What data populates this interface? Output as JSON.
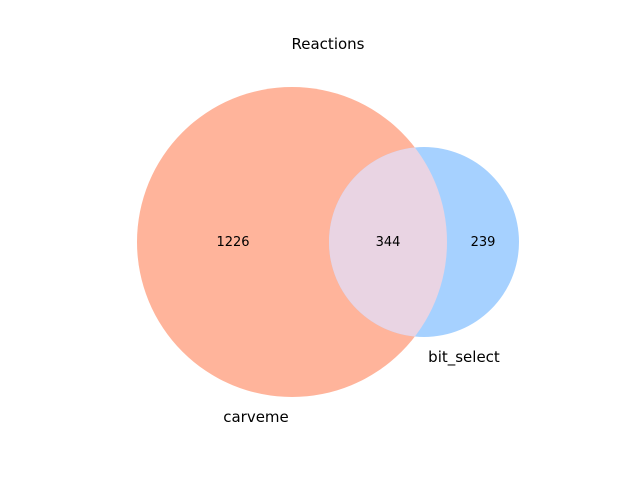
{
  "chart_data": {
    "type": "venn",
    "title": "Reactions",
    "sets": [
      {
        "name": "carveme",
        "color": "#ffb49b"
      },
      {
        "name": "bit_select",
        "color": "#a6d1ff"
      }
    ],
    "regions": {
      "only_a": 1226,
      "both": 344,
      "only_b": 239
    },
    "overlap_color": "#e9d4e3"
  }
}
